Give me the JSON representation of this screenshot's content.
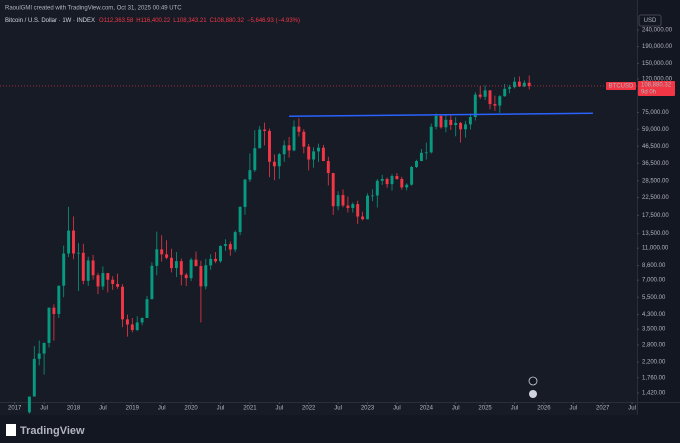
{
  "chart_data": {
    "type": "candlestick",
    "subtitle": "RaoulGMI created with TradingView.com, Oct 31, 2025 00:49 UTC",
    "title": "Bitcoin / U.S. Dollar · 1W · INDEX",
    "legend_values": [
      "O112,363.58",
      "H116,400.22",
      "L108,343.21",
      "C108,880.32",
      "−5,646.93 (−4.93%)"
    ],
    "y_label": "USD",
    "watermark": "TradingView",
    "log_scale": true,
    "grid": false,
    "up_color": "#089981",
    "down_color": "#f23645",
    "xlim": [
      "2016-10",
      "2027-08"
    ],
    "xticks": [
      {
        "value": "2017-01",
        "label": "2017"
      },
      {
        "value": "2017-07",
        "label": "Jul"
      },
      {
        "value": "2018-01",
        "label": "2018"
      },
      {
        "value": "2018-07",
        "label": "Jul"
      },
      {
        "value": "2019-01",
        "label": "2019"
      },
      {
        "value": "2019-07",
        "label": "Jul"
      },
      {
        "value": "2020-01",
        "label": "2020"
      },
      {
        "value": "2020-07",
        "label": "Jul"
      },
      {
        "value": "2021-01",
        "label": "2021"
      },
      {
        "value": "2021-07",
        "label": "Jul"
      },
      {
        "value": "2022-01",
        "label": "2022"
      },
      {
        "value": "2022-07",
        "label": "Jul"
      },
      {
        "value": "2023-01",
        "label": "2023"
      },
      {
        "value": "2023-07",
        "label": "Jul"
      },
      {
        "value": "2024-01",
        "label": "2024"
      },
      {
        "value": "2024-07",
        "label": "Jul"
      },
      {
        "value": "2025-01",
        "label": "2025"
      },
      {
        "value": "2025-07",
        "label": "Jul"
      },
      {
        "value": "2026-01",
        "label": "2026"
      },
      {
        "value": "2026-07",
        "label": "Jul"
      },
      {
        "value": "2027-01",
        "label": "2027"
      },
      {
        "value": "2027-07",
        "label": "Jul"
      }
    ],
    "ylim": [
      1250,
      269000
    ],
    "yticks": [
      {
        "value": 240000,
        "label": "240,000.00"
      },
      {
        "value": 190000,
        "label": "190,000.00"
      },
      {
        "value": 150000,
        "label": "150,000.00"
      },
      {
        "value": 120000,
        "label": "120,000.00"
      },
      {
        "value": 75000,
        "label": "75,000.00"
      },
      {
        "value": 59000,
        "label": "59,000.00"
      },
      {
        "value": 46500,
        "label": "46,500.00"
      },
      {
        "value": 36500,
        "label": "36,500.00"
      },
      {
        "value": 28500,
        "label": "28,500.00"
      },
      {
        "value": 22500,
        "label": "22,500.00"
      },
      {
        "value": 17500,
        "label": "17,500.00"
      },
      {
        "value": 13500,
        "label": "13,500.00"
      },
      {
        "value": 11000,
        "label": "11,000.00"
      },
      {
        "value": 8600,
        "label": "8,600.00"
      },
      {
        "value": 7000,
        "label": "7,000.00"
      },
      {
        "value": 5500,
        "label": "5,500.00"
      },
      {
        "value": 4300,
        "label": "4,300.00"
      },
      {
        "value": 3500,
        "label": "3,500.00"
      },
      {
        "value": 2800,
        "label": "2,800.00"
      },
      {
        "value": 2200,
        "label": "2,200.00"
      },
      {
        "value": 1760,
        "label": "1,760.00"
      },
      {
        "value": 1420,
        "label": "1,420.00"
      }
    ],
    "last_price": {
      "symbol": "BTCUSD",
      "value": 108880.32,
      "label": "108,880.32",
      "countdown": "9d 0h",
      "color": "#f23645"
    },
    "trendline": {
      "x": [
        "2021-09",
        "2026-11"
      ],
      "values": [
        71000,
        74000
      ],
      "color": "#2962ff"
    },
    "x": [
      "2017-04",
      "2017-05",
      "2017-06",
      "2017-07",
      "2017-08",
      "2017-09",
      "2017-10",
      "2017-11",
      "2017-12",
      "2018-01",
      "2018-02",
      "2018-03",
      "2018-04",
      "2018-05",
      "2018-06",
      "2018-07",
      "2018-08",
      "2018-09",
      "2018-10",
      "2018-11",
      "2018-12",
      "2019-01",
      "2019-02",
      "2019-03",
      "2019-04",
      "2019-05",
      "2019-06",
      "2019-07",
      "2019-08",
      "2019-09",
      "2019-10",
      "2019-11",
      "2019-12",
      "2020-01",
      "2020-02",
      "2020-03",
      "2020-04",
      "2020-05",
      "2020-06",
      "2020-07",
      "2020-08",
      "2020-09",
      "2020-10",
      "2020-11",
      "2020-12",
      "2021-01",
      "2021-02",
      "2021-03",
      "2021-04",
      "2021-05",
      "2021-06",
      "2021-07",
      "2021-08",
      "2021-09",
      "2021-10",
      "2021-11",
      "2021-12",
      "2022-01",
      "2022-02",
      "2022-03",
      "2022-04",
      "2022-05",
      "2022-06",
      "2022-07",
      "2022-08",
      "2022-09",
      "2022-10",
      "2022-11",
      "2022-12",
      "2023-01",
      "2023-02",
      "2023-03",
      "2023-04",
      "2023-05",
      "2023-06",
      "2023-07",
      "2023-08",
      "2023-09",
      "2023-10",
      "2023-11",
      "2023-12",
      "2024-01",
      "2024-02",
      "2024-03",
      "2024-04",
      "2024-05",
      "2024-06",
      "2024-07",
      "2024-08",
      "2024-09",
      "2024-10",
      "2024-11",
      "2024-12",
      "2025-01",
      "2025-02",
      "2025-03",
      "2025-04",
      "2025-05",
      "2025-06",
      "2025-07",
      "2025-08",
      "2025-09",
      "2025-10"
    ],
    "open": [
      1080,
      1350,
      2300,
      2480,
      2880,
      4740,
      4340,
      6470,
      10200,
      14100,
      10200,
      10300,
      6930,
      9240,
      7500,
      6400,
      7730,
      7040,
      6630,
      6370,
      4020,
      3740,
      3460,
      3850,
      4100,
      5350,
      8570,
      10820,
      10080,
      9600,
      8300,
      9150,
      7550,
      7200,
      9350,
      8540,
      6410,
      8630,
      9450,
      9140,
      11350,
      11650,
      10780,
      13800,
      19700,
      28990,
      33100,
      45200,
      58800,
      57700,
      37300,
      35000,
      41500,
      47100,
      43800,
      61300,
      57000,
      46200,
      38500,
      43200,
      45500,
      37700,
      31800,
      19900,
      23300,
      20100,
      19400,
      20500,
      17200,
      16550,
      23100,
      23150,
      28500,
      29250,
      27200,
      30500,
      29250,
      25950,
      26970,
      34650,
      37700,
      42300,
      42600,
      61200,
      71300,
      60700,
      67500,
      62700,
      64600,
      59000,
      63300,
      70200,
      96400,
      93400,
      102400,
      84300,
      82500,
      94200,
      104600,
      107100,
      115700,
      108200,
      114000
    ],
    "high": [
      1350,
      2760,
      2980,
      2900,
      4750,
      4980,
      6470,
      11400,
      19700,
      17200,
      11800,
      11700,
      9750,
      10000,
      7750,
      8500,
      7760,
      7400,
      7680,
      6600,
      4300,
      4100,
      4200,
      4130,
      5600,
      9000,
      13900,
      13200,
      12300,
      10900,
      10400,
      9500,
      7750,
      9600,
      10500,
      9200,
      9450,
      10080,
      10400,
      11450,
      12480,
      12080,
      14100,
      19900,
      29300,
      41950,
      58300,
      61800,
      64900,
      59600,
      41300,
      42300,
      50500,
      52900,
      67000,
      69000,
      59100,
      48000,
      45800,
      48200,
      47400,
      40000,
      31900,
      24600,
      25200,
      22800,
      21000,
      21500,
      18400,
      23900,
      25250,
      29200,
      31000,
      29800,
      31400,
      31800,
      30200,
      27500,
      35200,
      38400,
      44700,
      48900,
      64000,
      73800,
      72800,
      71900,
      71900,
      70000,
      65600,
      66500,
      73600,
      99600,
      108300,
      109600,
      102500,
      95000,
      95700,
      112000,
      110600,
      123200,
      124500,
      117900,
      126200
    ],
    "low": [
      1060,
      1350,
      2100,
      1840,
      2700,
      2970,
      4100,
      5500,
      9700,
      9400,
      6000,
      6600,
      6450,
      7050,
      5750,
      6100,
      5880,
      6100,
      6200,
      3600,
      3150,
      3350,
      3400,
      3700,
      4100,
      5330,
      7500,
      9100,
      9400,
      7800,
      7300,
      6500,
      6430,
      6900,
      8500,
      3850,
      6150,
      8100,
      8900,
      8950,
      10600,
      9880,
      10400,
      13200,
      17600,
      28000,
      32300,
      45000,
      47000,
      30000,
      28800,
      29300,
      37300,
      39600,
      43300,
      53300,
      42000,
      33000,
      34300,
      37200,
      37600,
      26700,
      17600,
      18800,
      19600,
      18200,
      18200,
      15500,
      16300,
      16500,
      21400,
      19550,
      26900,
      25800,
      24800,
      28900,
      25150,
      24900,
      26600,
      34100,
      37600,
      38500,
      41900,
      59000,
      59600,
      56500,
      58400,
      53500,
      49000,
      52500,
      58900,
      66800,
      90500,
      89200,
      78200,
      76600,
      74500,
      93400,
      98200,
      105300,
      107300,
      107200,
      103500
    ],
    "close": [
      1350,
      2300,
      2480,
      2880,
      4740,
      4340,
      6470,
      10200,
      14100,
      10200,
      10300,
      6930,
      9240,
      7500,
      6400,
      7730,
      7040,
      6630,
      6370,
      4020,
      3740,
      3460,
      3850,
      4100,
      5350,
      8570,
      10820,
      10080,
      9600,
      8300,
      9150,
      7550,
      7200,
      9350,
      8540,
      6410,
      8630,
      9450,
      9140,
      11350,
      11650,
      10780,
      13800,
      19700,
      28990,
      33100,
      45200,
      58800,
      57700,
      37300,
      35000,
      41500,
      47100,
      43800,
      61300,
      57000,
      46200,
      38500,
      43200,
      45500,
      37700,
      31800,
      19900,
      23300,
      20100,
      19400,
      20500,
      17200,
      16550,
      23100,
      23150,
      28500,
      29250,
      27200,
      30500,
      29250,
      25950,
      26970,
      34650,
      37700,
      42300,
      42600,
      61200,
      71300,
      60700,
      67500,
      62700,
      64600,
      59000,
      63300,
      70200,
      96400,
      93400,
      102400,
      84300,
      82500,
      94200,
      104600,
      107100,
      115700,
      108200,
      114000,
      108880
    ]
  }
}
